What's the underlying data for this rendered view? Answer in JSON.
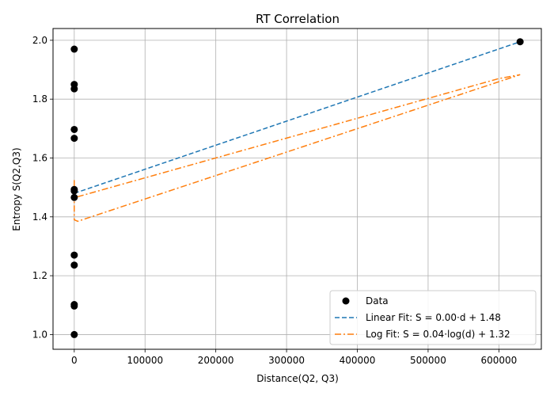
{
  "chart_data": {
    "type": "scatter",
    "title": "RT Correlation",
    "xlabel": "Distance(Q2, Q3)",
    "ylabel": "Entropy S(Q2,Q3)",
    "xlim": [
      -30000,
      660000
    ],
    "ylim": [
      0.95,
      2.04
    ],
    "xticks": [
      0,
      100000,
      200000,
      300000,
      400000,
      500000,
      600000
    ],
    "yticks": [
      1.0,
      1.2,
      1.4,
      1.6,
      1.8,
      2.0
    ],
    "grid": true,
    "legend_position": "bottom-right",
    "series": [
      {
        "name": "Data",
        "kind": "scatter",
        "color": "#000000",
        "points": [
          [
            0,
            1.97
          ],
          [
            0,
            1.85
          ],
          [
            0,
            1.835
          ],
          [
            0,
            1.697
          ],
          [
            0,
            1.667
          ],
          [
            0,
            1.493
          ],
          [
            0,
            1.488
          ],
          [
            0,
            1.466
          ],
          [
            0,
            1.27
          ],
          [
            0,
            1.236
          ],
          [
            0,
            1.102
          ],
          [
            0,
            1.097
          ],
          [
            0,
            1.0
          ],
          [
            630000,
            1.995
          ]
        ]
      },
      {
        "name": "Linear Fit: S = 0.00·d + 1.48",
        "kind": "line",
        "style": "dashed",
        "color": "#1f77b4",
        "points": [
          [
            0,
            1.48
          ],
          [
            630000,
            1.995
          ]
        ]
      },
      {
        "name": "Log Fit: S = 0.04·log(d) + 1.32",
        "kind": "line",
        "style": "dashdot",
        "color": "#ff7f0e",
        "points": [
          [
            0,
            1.525
          ],
          [
            0,
            1.43
          ],
          [
            0,
            1.39
          ],
          [
            5000,
            1.385
          ],
          [
            630000,
            1.883
          ],
          [
            600000,
            1.87
          ],
          [
            0,
            1.465
          ],
          [
            0,
            1.5
          ]
        ]
      }
    ]
  }
}
